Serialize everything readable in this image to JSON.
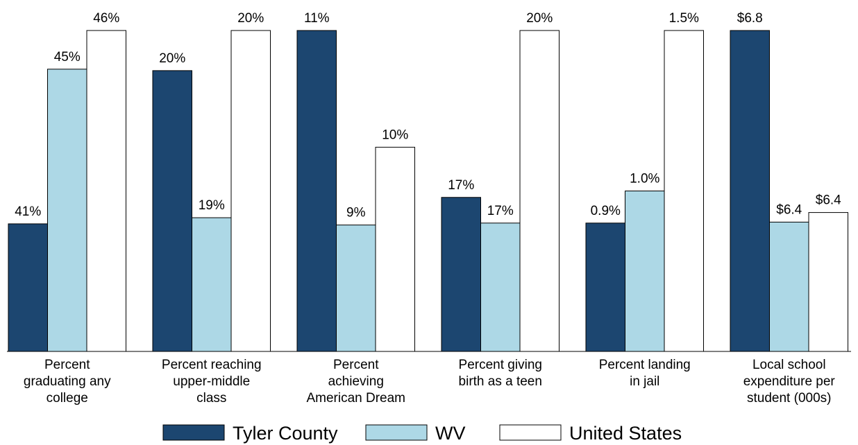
{
  "chart_data": {
    "type": "bar",
    "categories": [
      "Percent\ngraduating any\ncollege",
      "Percent reaching\nupper-middle\nclass",
      "Percent\nachieving\nAmerican Dream",
      "Percent giving\nbirth as a teen",
      "Percent landing\nin jail",
      "Local school\nexpenditure per\nstudent (000s)"
    ],
    "ylims": [
      [
        37.7,
        46
      ],
      [
        18,
        20.4
      ],
      [
        7.7,
        11
      ],
      [
        15,
        20
      ],
      [
        0.5,
        1.5
      ],
      [
        6.13,
        6.8
      ]
    ],
    "series": [
      {
        "name": "Tyler County",
        "color": "#1c4670",
        "values": [
          41,
          20.1,
          11,
          17.4,
          0.9,
          6.8
        ],
        "value_labels": [
          "41%",
          "20%",
          "11%",
          "17%",
          "0.9%",
          "$6.8"
        ]
      },
      {
        "name": "WV",
        "color": "#add8e6",
        "values": [
          45,
          19.0,
          9,
          17,
          1.0,
          6.4
        ],
        "value_labels": [
          "45%",
          "19%",
          "9%",
          "17%",
          "1.0%",
          "$6.4"
        ]
      },
      {
        "name": "United States",
        "color": "#ffffff",
        "values": [
          46,
          20.4,
          9.8,
          20,
          1.5,
          6.42
        ],
        "value_labels": [
          "46%",
          "20%",
          "10%",
          "20%",
          "1.5%",
          "$6.4"
        ]
      }
    ]
  }
}
